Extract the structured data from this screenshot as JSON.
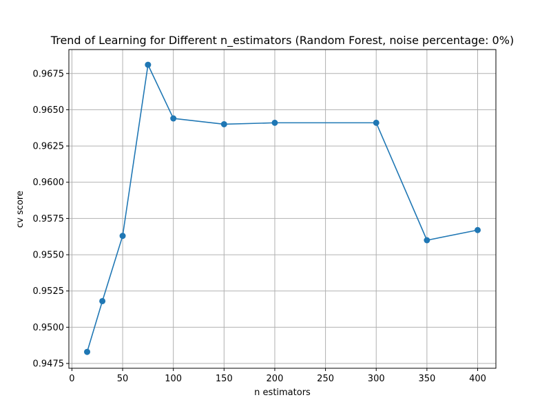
{
  "chart_data": {
    "type": "line",
    "title": "Trend of Learning for Different n_estimators (Random Forest, noise percentage: 0%)",
    "xlabel": "n estimators",
    "ylabel": "cv score",
    "xlim": [
      -3,
      418
    ],
    "ylim": [
      0.94717,
      0.96915
    ],
    "x_ticks": [
      0,
      50,
      100,
      150,
      200,
      250,
      300,
      350,
      400
    ],
    "y_ticks": [
      0.9475,
      0.95,
      0.9525,
      0.955,
      0.9575,
      0.96,
      0.9625,
      0.965,
      0.9675
    ],
    "x_tick_labels": [
      "0",
      "50",
      "100",
      "150",
      "200",
      "250",
      "300",
      "350",
      "400"
    ],
    "y_tick_labels": [
      "0.9475",
      "0.9500",
      "0.9525",
      "0.9550",
      "0.9575",
      "0.9600",
      "0.9625",
      "0.9650",
      "0.9675"
    ],
    "grid": true,
    "color": "#1f77b4",
    "series": [
      {
        "x": [
          15,
          30,
          50,
          75,
          100,
          150,
          200,
          300,
          350,
          400
        ],
        "values": [
          0.9483,
          0.9518,
          0.9563,
          0.9681,
          0.9644,
          0.964,
          0.9641,
          0.9641,
          0.956,
          0.9567
        ]
      }
    ]
  }
}
